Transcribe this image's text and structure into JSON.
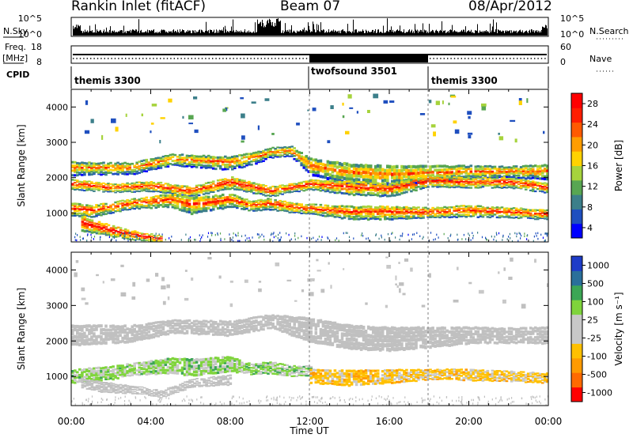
{
  "header": {
    "title": "Rankin Inlet (fitACF)",
    "beam": "Beam 07",
    "date": "08/Apr/2012"
  },
  "panels": {
    "nsky_label": "N.Sky",
    "nsky_ticks": [
      "10^5",
      "10^0"
    ],
    "nsearch_label": "N.Search",
    "nsearch_ticks": [
      "10^5",
      "10^0"
    ],
    "freq_label": "Freq.",
    "freq_unit": "[MHz]",
    "freq_ticks": [
      "18",
      "8"
    ],
    "nave_label": "Nave",
    "nave_ticks": [
      "60",
      "0"
    ],
    "cpid_label": "CPID",
    "cpid_programs": [
      "themis 3300",
      "twofsound 3501",
      "themis 3300"
    ]
  },
  "colors": {
    "power_scale": [
      "#0000ff",
      "#1f4fbf",
      "#3c7f8a",
      "#58a652",
      "#a6d33c",
      "#ffd200",
      "#ff9d00",
      "#ff5a00",
      "#ff1e00",
      "#ff0000"
    ],
    "velocity_scale": [
      "#ff0000",
      "#ff6a00",
      "#ff9a00",
      "#ffc000",
      "#c8c8c8",
      "#c8c8c8",
      "#7fd43c",
      "#3ca655",
      "#2a6f9a",
      "#1e3cc8"
    ],
    "ground_scatter": "#c0c0c0"
  },
  "chart_data": [
    {
      "type": "heatmap",
      "name": "power",
      "ylabel": "Slant Range [km]",
      "yticks": [
        1000,
        2000,
        3000,
        4000
      ],
      "ylim": [
        180,
        4500
      ],
      "xlim": [
        "00:00",
        "24:00"
      ],
      "colorbar_label": "Power [dB]",
      "colorbar_ticks": [
        "28",
        "24",
        "20",
        "16",
        "12",
        "8",
        "4"
      ],
      "colorbar_range": [
        0,
        30
      ],
      "bands": [
        {
          "x": [
            0,
            3,
            5,
            8,
            9.5,
            10,
            11,
            12,
            14,
            16,
            18,
            20,
            22,
            24
          ],
          "y_center": [
            2250,
            2250,
            2500,
            2400,
            2600,
            2700,
            2750,
            2300,
            2100,
            2050,
            2100,
            2150,
            2150,
            2150
          ],
          "y_width": [
            400,
            350,
            350,
            400,
            350,
            300,
            300,
            500,
            600,
            600,
            500,
            400,
            350,
            450
          ],
          "value": 22
        },
        {
          "x": [
            0,
            2,
            4,
            6,
            8,
            10,
            11,
            12,
            14,
            16,
            18,
            20,
            22,
            24
          ],
          "y_center": [
            1800,
            1700,
            1750,
            1600,
            1850,
            1600,
            1700,
            1800,
            1700,
            1650,
            1900,
            1850,
            1850,
            1700
          ],
          "y_width": [
            300,
            250,
            300,
            300,
            350,
            300,
            250,
            300,
            400,
            400,
            350,
            300,
            300,
            300
          ],
          "value": 26
        },
        {
          "x": [
            0,
            1,
            3,
            5,
            6,
            8,
            9,
            10,
            11,
            12,
            14,
            16,
            18,
            20,
            22,
            24
          ],
          "y_center": [
            1100,
            1050,
            1250,
            1350,
            1200,
            1350,
            1200,
            1250,
            1150,
            1100,
            1000,
            1000,
            1000,
            1050,
            1000,
            950
          ],
          "y_width": [
            400,
            350,
            300,
            400,
            500,
            400,
            300,
            350,
            300,
            300,
            400,
            400,
            300,
            350,
            300,
            300
          ],
          "value": 25
        },
        {
          "x": [
            0.5,
            1.5,
            2.5,
            3.5,
            4.5
          ],
          "y_center": [
            700,
            550,
            420,
            330,
            250
          ],
          "y_width": [
            450,
            350,
            300,
            250,
            200
          ],
          "value": 28
        }
      ]
    },
    {
      "type": "heatmap",
      "name": "velocity",
      "ylabel": "Slant Range [km]",
      "yticks": [
        1000,
        2000,
        3000,
        4000
      ],
      "ylim": [
        180,
        4500
      ],
      "xlim": [
        "00:00",
        "24:00"
      ],
      "xticks": [
        "00:00",
        "04:00",
        "08:00",
        "12:00",
        "16:00",
        "20:00",
        "00:00"
      ],
      "xlabel": "Time UT",
      "colorbar_label": "Velocity [m s⁻¹]",
      "colorbar_ticks": [
        "1000",
        "500",
        "100",
        "25",
        "-25",
        "-100",
        "-500",
        "-1000"
      ],
      "colorbar_range": [
        -1000,
        1000
      ],
      "bands": [
        {
          "x": [
            0,
            3,
            5,
            8,
            10,
            12,
            14,
            16,
            18,
            20,
            22,
            24
          ],
          "y_center": [
            2150,
            2200,
            2400,
            2350,
            2550,
            2300,
            2100,
            2050,
            2100,
            2150,
            2150,
            2150
          ],
          "y_width": [
            600,
            500,
            400,
            450,
            400,
            700,
            700,
            700,
            600,
            500,
            450,
            500
          ],
          "value": "gs"
        },
        {
          "x": [
            0,
            2,
            3,
            5,
            6,
            8,
            9,
            10,
            11,
            12
          ],
          "y_center": [
            1000,
            1100,
            1200,
            1300,
            1250,
            1350,
            1200,
            1250,
            1150,
            1150
          ],
          "y_width": [
            400,
            400,
            350,
            450,
            500,
            450,
            300,
            350,
            300,
            300
          ],
          "value": 300
        },
        {
          "x": [
            12,
            14,
            16,
            18,
            20,
            22,
            24
          ],
          "y_center": [
            1000,
            950,
            1000,
            1050,
            1050,
            1000,
            950
          ],
          "y_width": [
            400,
            450,
            400,
            300,
            350,
            300,
            300
          ],
          "value": -300
        },
        {
          "x": [
            0.5,
            1.5,
            2.5,
            3.5,
            4.5,
            6,
            8
          ],
          "y_center": [
            800,
            700,
            650,
            600,
            500,
            800,
            900
          ],
          "y_width": [
            300,
            300,
            250,
            200,
            200,
            250,
            300
          ],
          "value": "gs"
        }
      ]
    }
  ]
}
